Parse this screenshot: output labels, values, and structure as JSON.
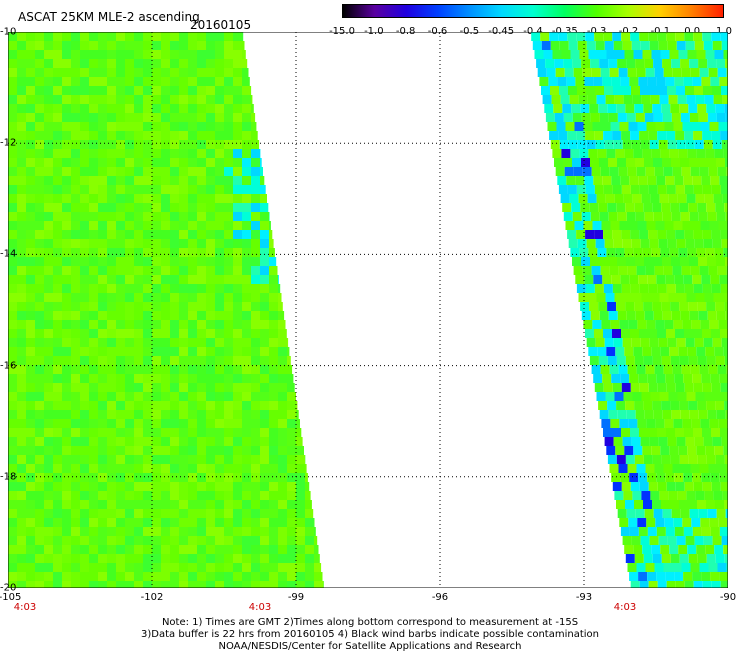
{
  "title": "ASCAT 25KM MLE-2 ascending",
  "date": "20160105",
  "colorbar": {
    "labels": [
      "-15.0",
      "-1.0",
      "-0.8",
      "-0.6",
      "-0.5",
      "-0.45",
      "-0.4",
      "-0.35",
      "-0.3",
      "-0.2",
      "-0.1",
      "0.0",
      "1.0"
    ],
    "colors": [
      "#000000",
      "#5a00a0",
      "#2000e0",
      "#0040ff",
      "#0090ff",
      "#00d8ff",
      "#00ffd0",
      "#00ff60",
      "#50ff00",
      "#a8ff00",
      "#ffd000",
      "#ff8000",
      "#ff2000"
    ]
  },
  "axes": {
    "lat_labels": [
      "-10",
      "-12",
      "-14",
      "-16",
      "-18",
      "-20"
    ],
    "lon_labels": [
      "-105",
      "-102",
      "-99",
      "-96",
      "-93",
      "-90"
    ],
    "time_labels": [
      "4:03",
      "4:03",
      "4:03"
    ]
  },
  "notes": {
    "line1": "Note: 1) Times are GMT 2)Times along bottom correspond to measurement at -15S",
    "line2": "3)Data buffer is 22 hrs from 20160105 4) Black wind barbs indicate possible contamination",
    "line3": "NOAA/NESDIS/Center for Satellite Applications and Research"
  },
  "swaths": {
    "left": {
      "lat_range": [
        -10,
        -20
      ],
      "east_edge_lon_at_top": -100.1,
      "east_edge_lon_at_bottom": -98.4
    },
    "right": {
      "lat_range": [
        -10,
        -20
      ],
      "west_edge_lon_at_top": -94.1,
      "west_edge_lon_at_bottom": -92.0
    }
  }
}
